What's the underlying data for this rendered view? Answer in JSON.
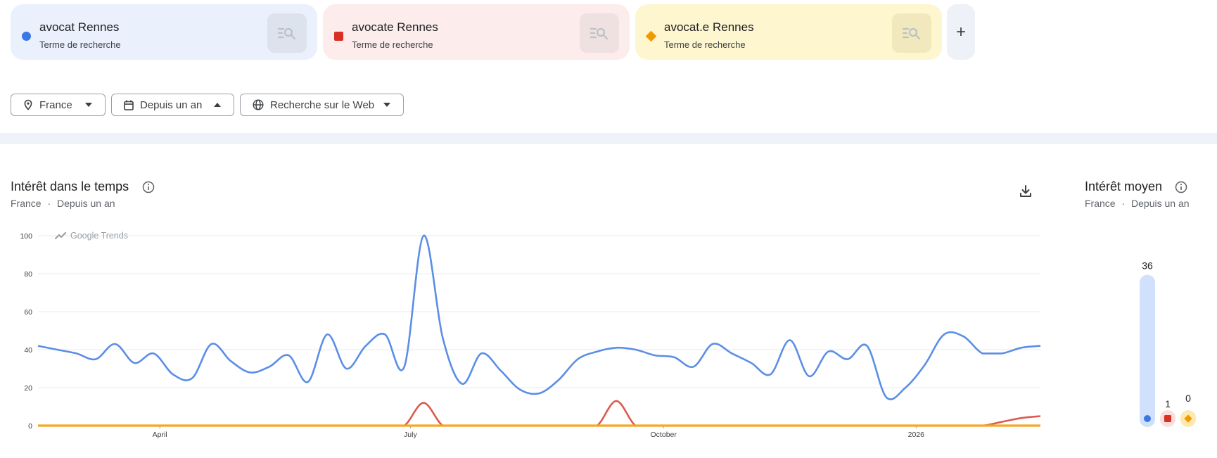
{
  "terms": [
    {
      "name": "avocat Rennes",
      "sub": "Terme de recherche",
      "color": "#3b78e7",
      "bg": "#eaf1fd",
      "btn": "#dde3ed",
      "marker": "circle"
    },
    {
      "name": "avocate Rennes",
      "sub": "Terme de recherche",
      "color": "#d93025",
      "bg": "#fcecec",
      "btn": "#efe1e1",
      "marker": "square"
    },
    {
      "name": "avocat.e Rennes",
      "sub": "Terme de recherche",
      "color": "#f29900",
      "bg": "#fef6cf",
      "btn": "#f1e9bd",
      "marker": "diamond"
    }
  ],
  "add_label": "+",
  "filters": {
    "region": "France",
    "period": "Depuis un an",
    "search_type": "Recherche sur le Web"
  },
  "interest_time": {
    "title": "Intérêt dans le temps",
    "region": "France",
    "dot": "·",
    "period": "Depuis un an",
    "watermark": "Google Trends"
  },
  "interest_avg": {
    "title": "Intérêt moyen",
    "region": "France",
    "dot": "·",
    "period": "Depuis un an"
  },
  "chart_data": [
    {
      "type": "line",
      "title": "Intérêt dans le temps",
      "ylim": [
        0,
        100
      ],
      "yticks": [
        "0",
        "20",
        "40",
        "60",
        "80",
        "100"
      ],
      "xticks": [
        "April",
        "July",
        "October",
        "2026"
      ],
      "grid": true,
      "series": [
        {
          "name": "avocat Rennes",
          "color": "#5b8ee6",
          "values": [
            42,
            40,
            38,
            35,
            43,
            33,
            38,
            27,
            25,
            43,
            34,
            28,
            31,
            37,
            23,
            48,
            30,
            42,
            48,
            31,
            100,
            46,
            22,
            38,
            29,
            19,
            17,
            24,
            35,
            39,
            41,
            40,
            37,
            36,
            31,
            43,
            38,
            33,
            27,
            45,
            26,
            39,
            35,
            42,
            15,
            20,
            32,
            48,
            47,
            38,
            38,
            41,
            42
          ]
        },
        {
          "name": "avocate Rennes",
          "color": "#dd5a4f",
          "values": [
            0,
            0,
            0,
            0,
            0,
            0,
            0,
            0,
            0,
            0,
            0,
            0,
            0,
            0,
            0,
            0,
            0,
            0,
            0,
            0,
            12,
            0,
            0,
            0,
            0,
            0,
            0,
            0,
            0,
            0,
            13,
            0,
            0,
            0,
            0,
            0,
            0,
            0,
            0,
            0,
            0,
            0,
            0,
            0,
            0,
            0,
            0,
            0,
            0,
            0,
            2,
            4,
            5
          ]
        },
        {
          "name": "avocat.e Rennes",
          "color": "#f5a623",
          "values": [
            0,
            0,
            0,
            0,
            0,
            0,
            0,
            0,
            0,
            0,
            0,
            0,
            0,
            0,
            0,
            0,
            0,
            0,
            0,
            0,
            0,
            0,
            0,
            0,
            0,
            0,
            0,
            0,
            0,
            0,
            0,
            0,
            0,
            0,
            0,
            0,
            0,
            0,
            0,
            0,
            0,
            0,
            0,
            0,
            0,
            0,
            0,
            0,
            0,
            0,
            0,
            0,
            0
          ]
        }
      ]
    },
    {
      "type": "bar",
      "title": "Intérêt moyen",
      "categories": [
        "avocat Rennes",
        "avocate Rennes",
        "avocat.e Rennes"
      ],
      "values": [
        36,
        1,
        0
      ],
      "labels": [
        "36",
        "1",
        "0"
      ]
    }
  ]
}
